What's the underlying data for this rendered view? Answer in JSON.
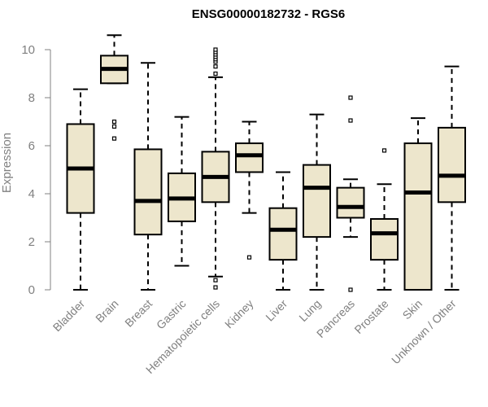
{
  "chart_data": {
    "type": "boxplot",
    "title": "ENSG00000182732 - RGS6",
    "xlabel": "",
    "ylabel": "Expression",
    "ylim": [
      0,
      10
    ],
    "yticks": [
      0,
      2,
      4,
      6,
      8,
      10
    ],
    "box_fill": "#ede6cc",
    "line_color": "#000000",
    "categories": [
      "Bladder",
      "Brain",
      "Breast",
      "Gastric",
      "Hematopoietic cells",
      "Kidney",
      "Liver",
      "Lung",
      "Pancreas",
      "Prostate",
      "Skin",
      "Unknown / Other"
    ],
    "boxes": [
      {
        "min": 0.0,
        "q1": 3.2,
        "median": 5.05,
        "q3": 6.9,
        "max": 8.35,
        "outliers": []
      },
      {
        "min": 8.6,
        "q1": 8.6,
        "median": 9.2,
        "q3": 9.75,
        "max": 10.6,
        "outliers": [
          7.0,
          6.8,
          6.3
        ]
      },
      {
        "min": 0.0,
        "q1": 2.3,
        "median": 3.7,
        "q3": 5.85,
        "max": 9.45,
        "outliers": []
      },
      {
        "min": 1.0,
        "q1": 2.85,
        "median": 3.8,
        "q3": 4.85,
        "max": 7.2,
        "outliers": []
      },
      {
        "min": 0.55,
        "q1": 3.65,
        "median": 4.7,
        "q3": 5.75,
        "max": 8.85,
        "outliers": [
          9.0,
          9.3,
          9.5,
          9.6,
          9.7,
          9.8,
          9.9,
          10.0,
          0.4,
          0.1
        ]
      },
      {
        "min": 3.2,
        "q1": 4.9,
        "median": 5.6,
        "q3": 6.1,
        "max": 7.0,
        "outliers": [
          1.35
        ]
      },
      {
        "min": 0.0,
        "q1": 1.25,
        "median": 2.5,
        "q3": 3.4,
        "max": 4.9,
        "outliers": []
      },
      {
        "min": 0.0,
        "q1": 2.2,
        "median": 4.25,
        "q3": 5.2,
        "max": 7.3,
        "outliers": []
      },
      {
        "min": 2.2,
        "q1": 3.0,
        "median": 3.45,
        "q3": 4.25,
        "max": 4.6,
        "outliers": [
          8.0,
          7.05,
          0.0
        ]
      },
      {
        "min": 0.0,
        "q1": 1.25,
        "median": 2.35,
        "q3": 2.95,
        "max": 4.4,
        "outliers": [
          5.8
        ]
      },
      {
        "min": 0.0,
        "q1": 0.0,
        "median": 4.05,
        "q3": 6.1,
        "max": 7.15,
        "outliers": []
      },
      {
        "min": 0.0,
        "q1": 3.65,
        "median": 4.75,
        "q3": 6.75,
        "max": 9.3,
        "outliers": []
      }
    ]
  }
}
